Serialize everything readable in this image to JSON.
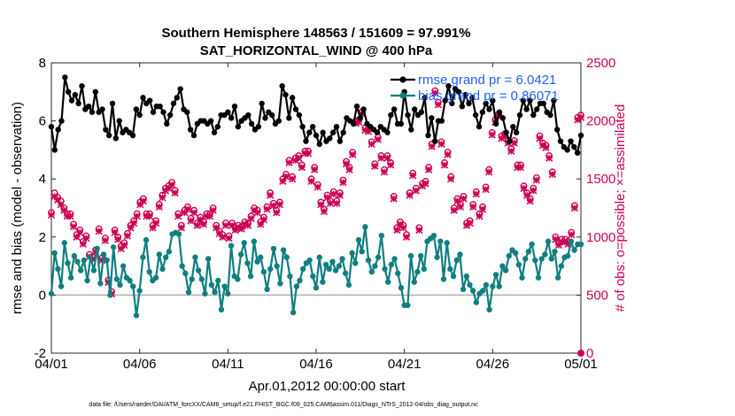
{
  "chart_data": {
    "type": "line",
    "title_line1": "Southern Hemisphere 148563 / 151609 = 97.991%",
    "title_line2": "SAT_HORIZONTAL_WIND @ 400 hPa",
    "xlabel": "Apr.01,2012 00:00:00 start",
    "ylabel_left": "rmse and bias (model - observation)",
    "ylabel_right": "# of obs: o=possible; ×=assimilated",
    "x_ticks": [
      "04/01",
      "04/06",
      "04/11",
      "04/16",
      "04/21",
      "04/26",
      "05/01"
    ],
    "x_range_days": [
      0,
      30
    ],
    "ylim_left": [
      -2,
      8
    ],
    "y_ticks_left": [
      "-2",
      "0",
      "2",
      "4",
      "6",
      "8"
    ],
    "ylim_right": [
      0,
      2500
    ],
    "y_ticks_right": [
      "0",
      "500",
      "1000",
      "1500",
      "2000",
      "2500"
    ],
    "footnote": "data file: /Users/raeder/DAI/ATM_forcXX/CAM6_setup/f.e21.FHIST_BGC.f09_025.CAM6assim.011/Diags_NTrS_2012-04/obs_diag_output.nc",
    "colors": {
      "rmse": "#000000",
      "bias": "#0f7f7f",
      "obs": "#cc0055",
      "legend_text": "#1f5fff"
    },
    "series": [
      {
        "name": "rmse grand pr = 6.0421",
        "marker": "filled-circle",
        "values": [
          5.8,
          5.0,
          5.7,
          6.0,
          7.5,
          7.0,
          6.7,
          6.9,
          6.6,
          7.2,
          6.4,
          6.5,
          6.3,
          7.0,
          6.3,
          6.4,
          5.7,
          5.5,
          6.6,
          5.4,
          6.0,
          5.6,
          5.7,
          5.6,
          5.5,
          6.4,
          6.2,
          6.8,
          6.6,
          6.7,
          6.3,
          6.5,
          6.5,
          6.3,
          5.9,
          6.2,
          6.6,
          6.8,
          7.1,
          6.4,
          6.3,
          5.7,
          5.5,
          5.9,
          6.0,
          6.0,
          5.9,
          6.0,
          5.6,
          5.8,
          6.2,
          6.2,
          6.3,
          6.1,
          6.5,
          5.8,
          6.0,
          6.1,
          6.2,
          5.9,
          5.7,
          5.8,
          6.6,
          6.1,
          6.3,
          6.2,
          5.9,
          6.0,
          7.2,
          6.9,
          6.1,
          6.8,
          6.4,
          6.2,
          5.8,
          5.3,
          5.6,
          5.8,
          5.5,
          5.2,
          5.6,
          5.3,
          5.4,
          5.6,
          5.8,
          5.3,
          5.6,
          6.1,
          6.0,
          5.9,
          6.5,
          6.1,
          6.4,
          5.9,
          5.8,
          5.7,
          5.6,
          5.8,
          5.7,
          5.6,
          6.2,
          6.4,
          5.9,
          5.9,
          7.0,
          6.2,
          5.7,
          6.4,
          6.2,
          6.3,
          6.8,
          5.5,
          6.1,
          5.3,
          6.0,
          6.0,
          6.7,
          7.2,
          6.6,
          7.1,
          7.0,
          6.5,
          6.9,
          6.6,
          6.8,
          6.2,
          5.8,
          6.3,
          6.6,
          6.4,
          6.7,
          5.9,
          6.3,
          6.1,
          5.6,
          5.3,
          5.8,
          5.6,
          6.2,
          6.7,
          6.4,
          6.7,
          6.2,
          6.4,
          6.6,
          6.6,
          6.3,
          6.2,
          6.7,
          5.7,
          5.3,
          5.1,
          5.0,
          5.3,
          5.1,
          4.9,
          5.5
        ]
      },
      {
        "name": "bias grand pr = 0.86071",
        "marker": "filled-circle",
        "values": [
          0.05,
          1.45,
          0.9,
          0.3,
          1.8,
          1.1,
          0.6,
          1.35,
          1.15,
          0.85,
          1.2,
          0.5,
          1.3,
          0.85,
          1.6,
          0.4,
          1.4,
          1.2,
          0.0,
          1.65,
          0.55,
          0.35,
          1.0,
          0.6,
          0.5,
          0.3,
          -0.7,
          0.15,
          1.3,
          1.9,
          0.8,
          0.5,
          0.6,
          1.4,
          0.9,
          1.3,
          1.5,
          2.1,
          2.15,
          2.1,
          1.0,
          0.75,
          0.1,
          0.55,
          1.3,
          0.85,
          0.55,
          0.05,
          1.25,
          0.35,
          0.1,
          0.5,
          -0.5,
          0.3,
          0.05,
          1.7,
          0.65,
          0.55,
          1.4,
          1.8,
          1.1,
          0.65,
          1.85,
          1.15,
          1.3,
          0.8,
          0.2,
          0.9,
          1.6,
          1.0,
          0.4,
          1.55,
          1.3,
          0.65,
          -0.6,
          0.3,
          0.5,
          0.9,
          1.1,
          1.2,
          0.65,
          0.25,
          1.3,
          0.45,
          1.05,
          0.9,
          1.15,
          0.85,
          1.0,
          1.25,
          0.75,
          0.35,
          1.45,
          1.1,
          1.9,
          1.5,
          2.35,
          1.2,
          0.8,
          1.0,
          1.3,
          2.05,
          0.9,
          0.45,
          1.05,
          1.25,
          0.75,
          0.25,
          -0.35,
          -0.35,
          1.35,
          0.45,
          0.8,
          1.35,
          0.9,
          1.85,
          1.95,
          2.05,
          1.3,
          1.85,
          0.55,
          1.8,
          0.9,
          0.65,
          1.2,
          1.4,
          0.2,
          0.65,
          0.35,
          0.15,
          -0.25,
          0.05,
          0.15,
          0.35,
          -0.5,
          0.3,
          0.7,
          0.3,
          1.0,
          0.85,
          1.35,
          1.55,
          1.45,
          1.05,
          0.6,
          1.25,
          1.5,
          1.75,
          1.2,
          0.6,
          1.25,
          1.4,
          1.85,
          1.25,
          1.5,
          0.6,
          1.0,
          1.3,
          1.35,
          1.85,
          1.55,
          1.75,
          1.75
        ]
      },
      {
        "name": "possible obs",
        "marker": "open-circle",
        "values": [
          1210,
          1380,
          1340,
          1310,
          1250,
          1200,
          1200,
          1110,
          1020,
          1060,
          960,
          1010,
          850,
          830,
          890,
          1070,
          820,
          990,
          630,
          530,
          1060,
          1000,
          920,
          950,
          1030,
          1100,
          1140,
          1200,
          1300,
          1330,
          1200,
          1200,
          1100,
          1140,
          1280,
          1360,
          1420,
          1440,
          1470,
          1400,
          1200,
          1100,
          1230,
          1260,
          1160,
          1230,
          1120,
          1170,
          1130,
          1200,
          1200,
          1250,
          1100,
          1050,
          1020,
          1120,
          1010,
          1120,
          1080,
          1100,
          1090,
          1130,
          1120,
          1180,
          1250,
          1230,
          1130,
          1170,
          1260,
          1380,
          1290,
          1230,
          1300,
          1500,
          1540,
          1660,
          1520,
          1680,
          1700,
          1620,
          1740,
          1740,
          1500,
          1600,
          1450,
          1300,
          1240,
          1360,
          1310,
          1390,
          1310,
          1380,
          1490,
          1650,
          1600,
          1730,
          2000,
          2010,
          2080,
          1940,
          1930,
          1820,
          1630,
          1860,
          1700,
          1580,
          1700,
          1640,
          1350,
          1080,
          1130,
          1100,
          1020,
          1380,
          1550,
          1420,
          1080,
          1460,
          1480,
          1600,
          1800,
          2260,
          2160,
          1820,
          1640,
          1730,
          1520,
          1250,
          1330,
          1280,
          1350,
          1120,
          1140,
          1280,
          1390,
          1200,
          1260,
          1430,
          1580,
          1900,
          2010,
          2060,
          1870,
          1890,
          1830,
          1760,
          1830,
          1620,
          1620,
          1440,
          1380,
          1330,
          1420,
          1510,
          1870,
          1810,
          1790,
          1700,
          1560,
          1000,
          950,
          980,
          980,
          960,
          1040,
          1270,
          2030,
          2050
        ]
      },
      {
        "name": "assimilated obs",
        "marker": "cross",
        "values": [
          1190,
          1350,
          1320,
          1280,
          1230,
          1180,
          1180,
          1090,
          1000,
          1040,
          940,
          990,
          830,
          810,
          870,
          1050,
          800,
          970,
          610,
          510,
          1040,
          980,
          900,
          930,
          1010,
          1080,
          1120,
          1180,
          1280,
          1310,
          1180,
          1180,
          1080,
          1120,
          1260,
          1340,
          1400,
          1420,
          1450,
          1380,
          1180,
          1080,
          1210,
          1240,
          1140,
          1210,
          1100,
          1150,
          1110,
          1180,
          1180,
          1230,
          1080,
          1030,
          1000,
          1100,
          990,
          1100,
          1060,
          1080,
          1070,
          1110,
          1100,
          1160,
          1230,
          1210,
          1110,
          1150,
          1240,
          1360,
          1270,
          1210,
          1280,
          1480,
          1520,
          1640,
          1500,
          1660,
          1680,
          1600,
          1720,
          1720,
          1480,
          1580,
          1430,
          1280,
          1220,
          1340,
          1290,
          1370,
          1290,
          1360,
          1470,
          1630,
          1580,
          1710,
          1980,
          1990,
          2060,
          1920,
          1910,
          1800,
          1610,
          1840,
          1680,
          1560,
          1680,
          1620,
          1330,
          1060,
          1110,
          1080,
          1000,
          1360,
          1530,
          1400,
          1060,
          1440,
          1460,
          1580,
          1780,
          2240,
          2140,
          1800,
          1620,
          1710,
          1500,
          1230,
          1310,
          1260,
          1330,
          1100,
          1120,
          1260,
          1370,
          1180,
          1240,
          1410,
          1560,
          1880,
          1990,
          2040,
          1850,
          1870,
          1810,
          1740,
          1810,
          1600,
          1600,
          1420,
          1360,
          1310,
          1400,
          1490,
          1850,
          1790,
          1770,
          1680,
          1540,
          980,
          930,
          960,
          960,
          940,
          1020,
          1250,
          2010,
          2030
        ]
      }
    ]
  }
}
